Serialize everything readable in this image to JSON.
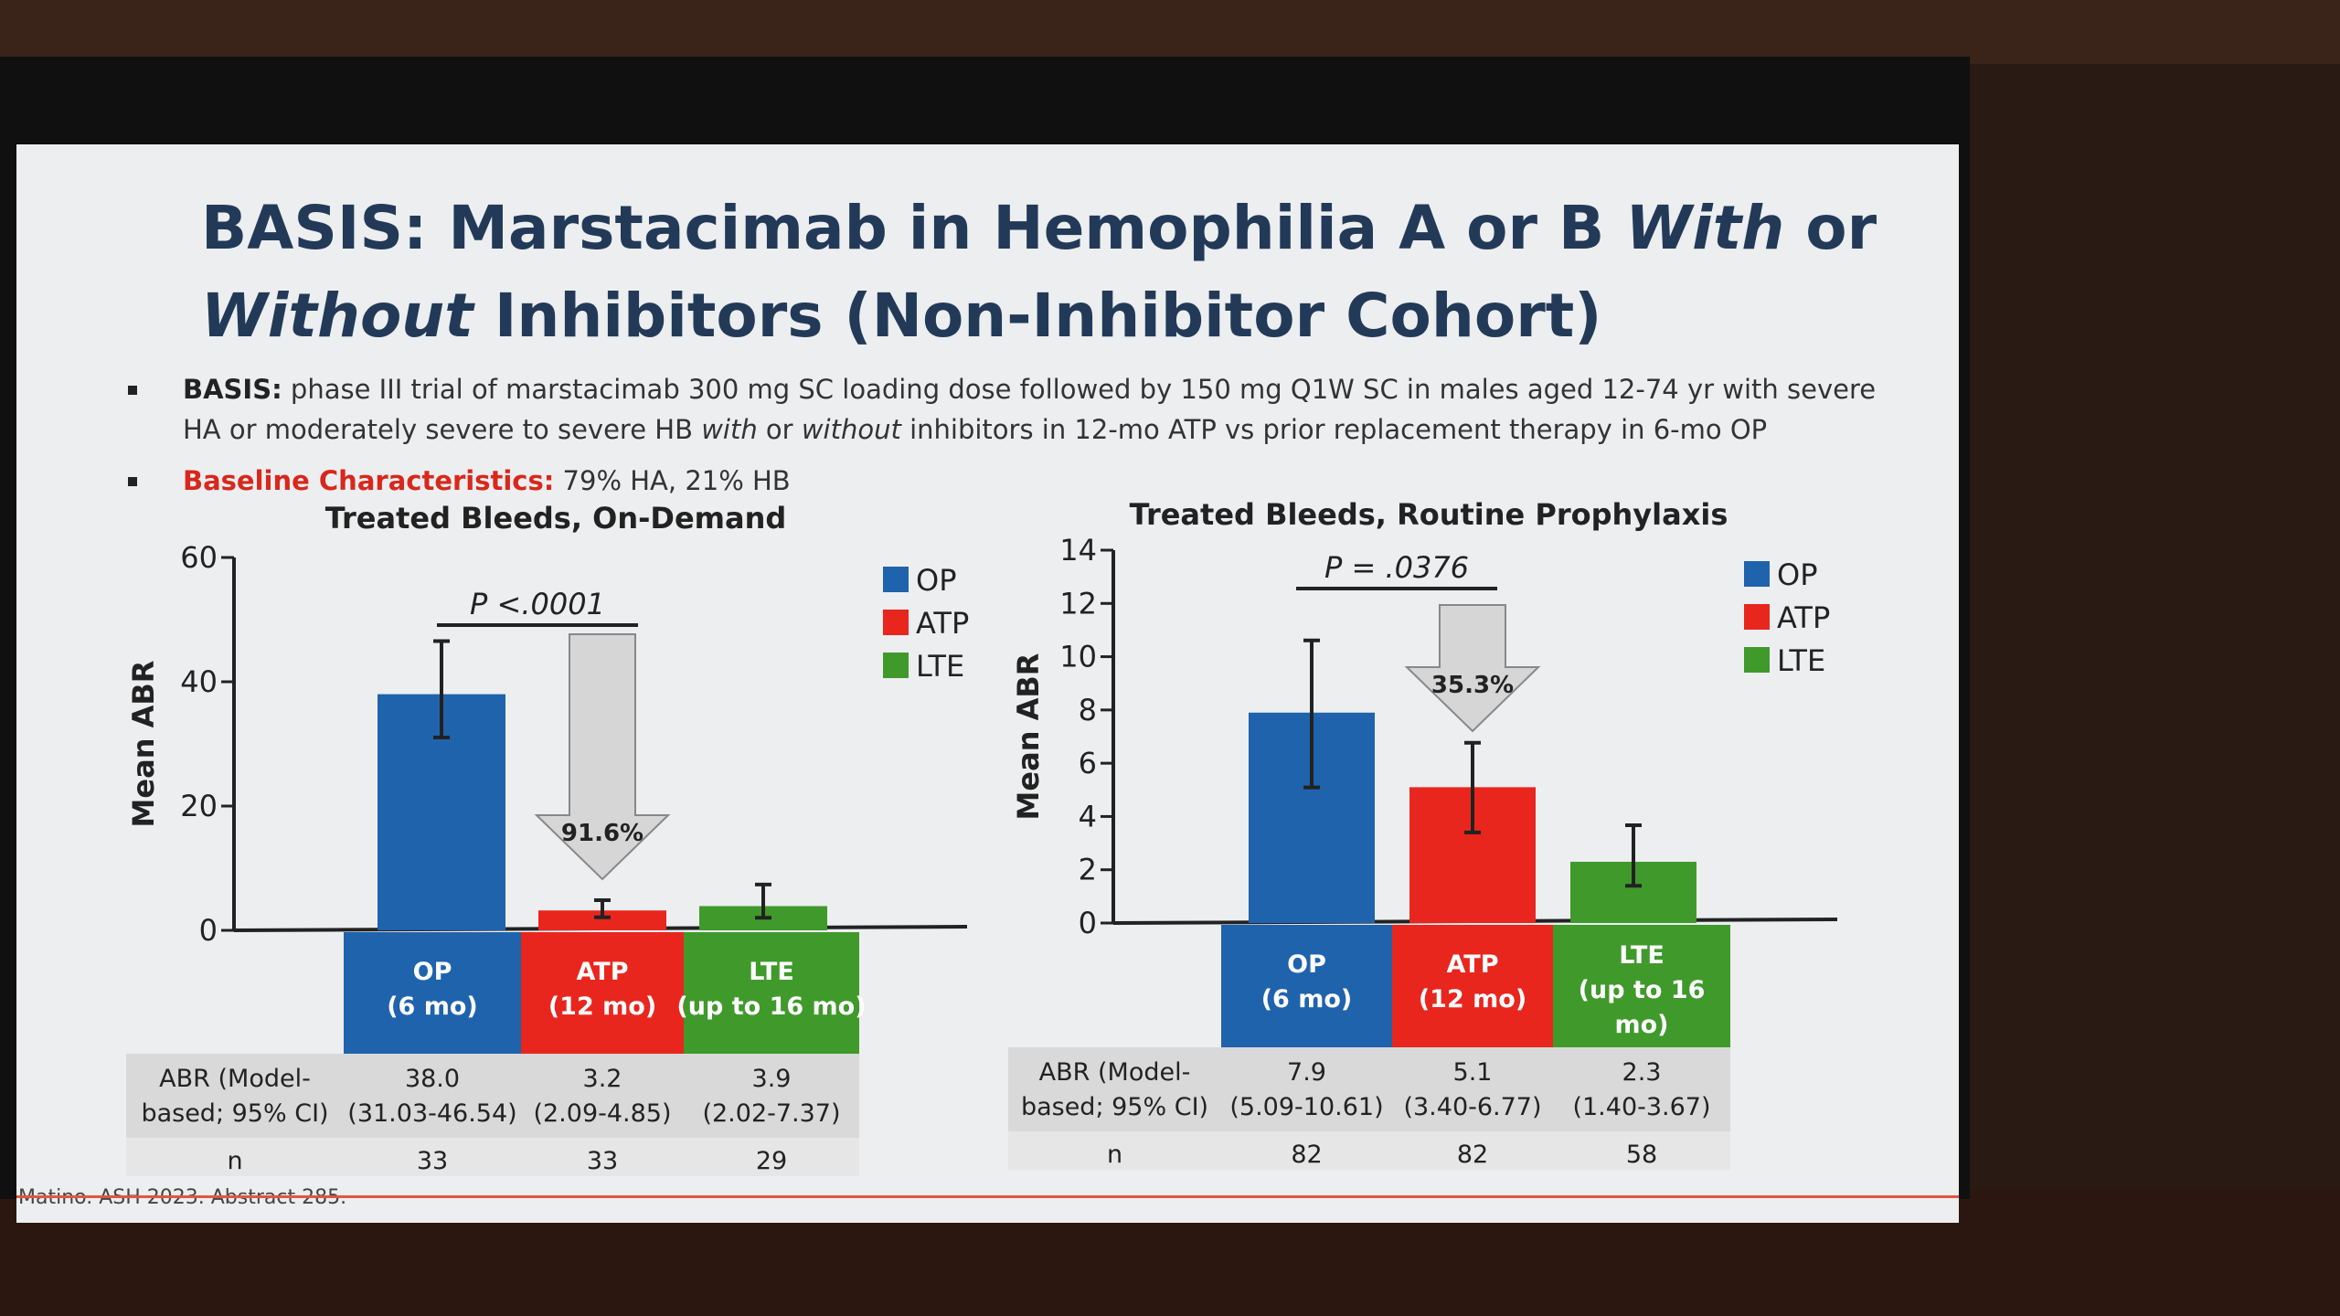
{
  "slide": {
    "title_part1": "BASIS: Marstacimab in Hemophilia A or B ",
    "title_italic1": "With",
    "title_part2": " or",
    "title_italic2": "Without",
    "title_part3": " Inhibitors (Non-Inhibitor Cohort)",
    "bullet1_bold": "BASIS:",
    "bullet1_a": " phase III trial of marstacimab 300 mg SC loading dose followed by 150 mg Q1W SC in males aged 12-74 yr with severe HA or moderately severe to severe HB ",
    "bullet1_i1": "with",
    "bullet1_b": " or ",
    "bullet1_i2": "without",
    "bullet1_c": " inhibitors in 12-mo ATP vs prior replacement therapy in 6-mo OP",
    "bullet2_label": "Baseline Characteristics:",
    "bullet2_text": " 79% HA, 21% HB",
    "footer": "Matino. ASH 2023. Abstract 285."
  },
  "colors": {
    "OP": "#1f63ad",
    "ATP": "#e8261e",
    "LTE": "#3f9a2b",
    "arrow": "#d6d6d6",
    "table": "#d9d9d9"
  },
  "chart_data": [
    {
      "type": "bar",
      "title": "Treated Bleeds, On-Demand",
      "ylabel": "Mean ABR",
      "ylim": [
        0,
        60
      ],
      "yticks": [
        "0",
        "20",
        "40",
        "60"
      ],
      "legend": [
        "OP",
        "ATP",
        "LTE"
      ],
      "legend_position": "top-right",
      "categories": [
        "OP\n(6 mo)",
        "ATP\n(12 mo)",
        "LTE\n(up to 16 mo)"
      ],
      "category_line1": [
        "OP",
        "ATP",
        "LTE"
      ],
      "category_line2": [
        "(6 mo)",
        "(12 mo)",
        "(up to 16 mo)"
      ],
      "values": [
        38.0,
        3.2,
        3.9
      ],
      "ci_low": [
        31.03,
        2.09,
        2.02
      ],
      "ci_high": [
        46.54,
        4.85,
        7.37
      ],
      "pvalue": "P <.0001",
      "reduction": "91.6%",
      "table_row1_label": "ABR (Model-based; 95% CI)",
      "table_row1_label_l1": "ABR (Model-",
      "table_row1_label_l2": "based; 95% CI)",
      "abr": [
        "38.0",
        "3.2",
        "3.9"
      ],
      "ci_text": [
        "(31.03-46.54)",
        "(2.09-4.85)",
        "(2.02-7.37)"
      ],
      "n_label": "n",
      "n": [
        "33",
        "33",
        "29"
      ]
    },
    {
      "type": "bar",
      "title": "Treated Bleeds, Routine Prophylaxis",
      "ylabel": "Mean ABR",
      "ylim": [
        0,
        14
      ],
      "yticks": [
        "0",
        "2",
        "4",
        "6",
        "8",
        "10",
        "12",
        "14"
      ],
      "legend": [
        "OP",
        "ATP",
        "LTE"
      ],
      "legend_position": "top-right",
      "category_line1": [
        "OP",
        "ATP",
        "LTE"
      ],
      "category_line2": [
        "(6 mo)",
        "(12 mo)",
        "(up to 16"
      ],
      "category_line3": [
        "",
        "",
        "mo)"
      ],
      "values": [
        7.9,
        5.1,
        2.3
      ],
      "ci_low": [
        5.09,
        3.4,
        1.4
      ],
      "ci_high": [
        10.61,
        6.77,
        3.67
      ],
      "pvalue": "P = .0376",
      "reduction": "35.3%",
      "table_row1_label_l1": "ABR (Model-",
      "table_row1_label_l2": "based; 95% CI)",
      "abr": [
        "7.9",
        "5.1",
        "2.3"
      ],
      "ci_text": [
        "(5.09-10.61)",
        "(3.40-6.77)",
        "(1.40-3.67)"
      ],
      "n_label": "n",
      "n": [
        "82",
        "82",
        "58"
      ]
    }
  ]
}
